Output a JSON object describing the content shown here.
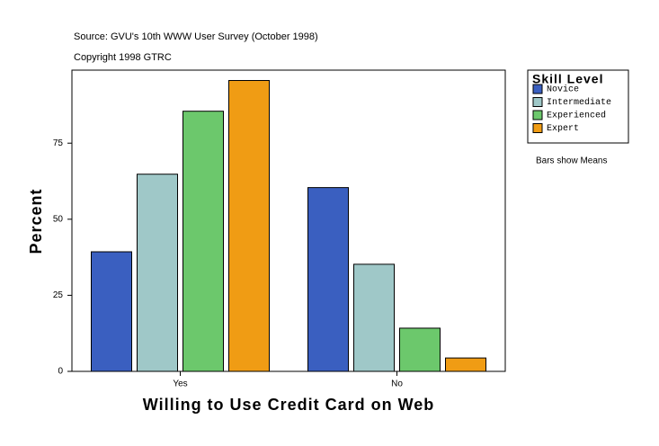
{
  "chart_data": {
    "type": "bar",
    "source": "Source: GVU's 10th WWW User Survey (October 1998)",
    "copyright": "Copyright 1998 GTRC",
    "x_label": "Willing to Use Credit Card on Web",
    "y_label": "Percent",
    "legend_title": "Skill Level",
    "note": "Bars show Means",
    "categories": [
      "Yes",
      "No"
    ],
    "series": [
      {
        "name": "Novice",
        "color": "#3a5fc0",
        "values": [
          39.3,
          60.4
        ]
      },
      {
        "name": "Intermediate",
        "color": "#9fc8c8",
        "values": [
          64.8,
          35.2
        ]
      },
      {
        "name": "Experienced",
        "color": "#6cc86c",
        "values": [
          85.5,
          14.2
        ]
      },
      {
        "name": "Expert",
        "color": "#f09c14",
        "values": [
          95.6,
          4.4
        ]
      }
    ],
    "ylim": [
      0,
      99
    ],
    "yticks": [
      0,
      25,
      50,
      75
    ],
    "legend": "right"
  }
}
